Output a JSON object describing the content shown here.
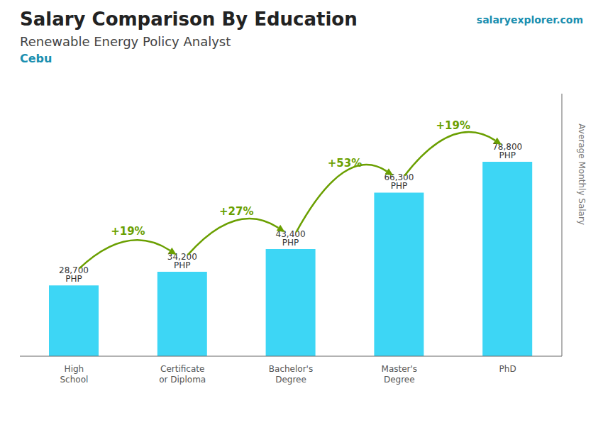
{
  "chart_data": {
    "type": "bar",
    "title": "Salary Comparison By Education",
    "subtitle": [
      "Renewable Energy Policy Analyst",
      "Cebu"
    ],
    "annotations": [
      "salaryexplorer.com"
    ],
    "y_label": "Average Monthly Salary",
    "categories": [
      "High\nSchool",
      "Certificate\nor Diploma",
      "Bachelor's\nDegree",
      "Master's\nDegree",
      "PhD"
    ],
    "values": [
      28700,
      34200,
      43400,
      66300,
      78800
    ],
    "value_labels": [
      "28,700 PHP",
      "34,200 PHP",
      "43,400 PHP",
      "66,300 PHP",
      "78,800 PHP"
    ],
    "data_labels": true,
    "change_labels": [
      "+19%",
      "+27%",
      "+53%",
      "+19%"
    ],
    "color": "#3dd6f5",
    "ylim": [
      0,
      106380
    ],
    "tick_labels": "x",
    "grid": false
  }
}
